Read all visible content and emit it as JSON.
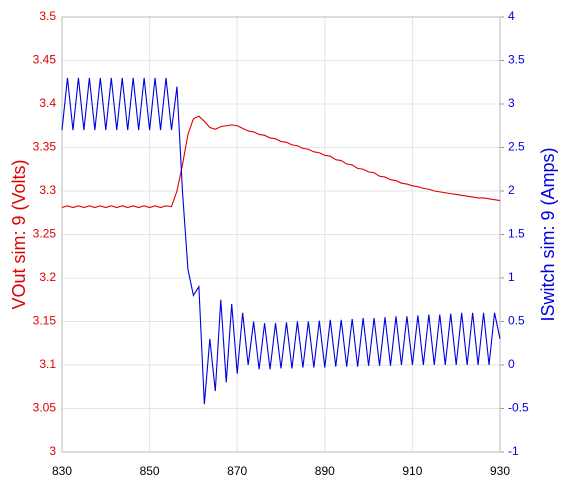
{
  "chart_data": {
    "type": "line",
    "x": [
      830,
      831.25,
      832.5,
      833.75,
      835,
      836.25,
      837.5,
      838.75,
      840,
      841.25,
      842.5,
      843.75,
      845,
      846.25,
      847.5,
      848.75,
      850,
      851.25,
      852.5,
      853.75,
      855,
      856.25,
      857.5,
      858.75,
      860,
      861.25,
      862.5,
      863.75,
      865,
      866.25,
      867.5,
      868.75,
      870,
      871.25,
      872.5,
      873.75,
      875,
      876.25,
      877.5,
      878.75,
      880,
      881.25,
      882.5,
      883.75,
      885,
      886.25,
      887.5,
      888.75,
      890,
      891.25,
      892.5,
      893.75,
      895,
      896.25,
      897.5,
      898.75,
      900,
      901.25,
      902.5,
      903.75,
      905,
      906.25,
      907.5,
      908.75,
      910,
      911.25,
      912.5,
      913.75,
      915,
      916.25,
      917.5,
      918.75,
      920,
      921.25,
      922.5,
      923.75,
      925,
      926.25,
      927.5,
      928.75,
      930
    ],
    "series": [
      {
        "name": "VOut sim:  9 (Volts)",
        "color": "#e00000",
        "axis": "y",
        "values": [
          3.281,
          3.283,
          3.281,
          3.283,
          3.281,
          3.283,
          3.281,
          3.283,
          3.281,
          3.283,
          3.281,
          3.283,
          3.281,
          3.283,
          3.281,
          3.283,
          3.281,
          3.283,
          3.281,
          3.283,
          3.282,
          3.3,
          3.33,
          3.365,
          3.383,
          3.386,
          3.38,
          3.373,
          3.371,
          3.374,
          3.375,
          3.376,
          3.375,
          3.372,
          3.369,
          3.368,
          3.365,
          3.364,
          3.361,
          3.36,
          3.357,
          3.356,
          3.353,
          3.352,
          3.349,
          3.348,
          3.345,
          3.344,
          3.341,
          3.34,
          3.336,
          3.335,
          3.331,
          3.33,
          3.326,
          3.325,
          3.322,
          3.321,
          3.317,
          3.316,
          3.313,
          3.312,
          3.309,
          3.308,
          3.306,
          3.305,
          3.303,
          3.302,
          3.3,
          3.299,
          3.298,
          3.297,
          3.296,
          3.295,
          3.294,
          3.293,
          3.292,
          3.292,
          3.291,
          3.29,
          3.289
        ]
      },
      {
        "name": "ISwitch sim:  9 (Amps)",
        "color": "#0000e0",
        "axis": "y2",
        "values": [
          2.7,
          3.3,
          2.7,
          3.3,
          2.7,
          3.3,
          2.7,
          3.3,
          2.7,
          3.3,
          2.7,
          3.3,
          2.7,
          3.3,
          2.7,
          3.3,
          2.7,
          3.3,
          2.7,
          3.3,
          2.7,
          3.2,
          2.0,
          1.1,
          0.8,
          0.9,
          -0.45,
          0.3,
          -0.3,
          0.75,
          -0.2,
          0.7,
          -0.1,
          0.6,
          0,
          0.5,
          -0.05,
          0.48,
          -0.05,
          0.48,
          -0.04,
          0.49,
          -0.04,
          0.5,
          -0.03,
          0.5,
          -0.03,
          0.51,
          -0.03,
          0.52,
          -0.02,
          0.52,
          -0.02,
          0.53,
          -0.02,
          0.54,
          -0.01,
          0.54,
          -0.01,
          0.55,
          -0.01,
          0.56,
          0,
          0.56,
          0,
          0.57,
          0,
          0.58,
          0,
          0.58,
          0,
          0.59,
          0,
          0.6,
          0,
          0.6,
          0,
          0.6,
          0,
          0.6,
          0.3
        ]
      }
    ],
    "xlim": [
      830,
      930
    ],
    "xticks": [
      830,
      850,
      870,
      890,
      910,
      930
    ],
    "ylim": [
      3,
      3.5
    ],
    "yticks": [
      3,
      3.05,
      3.1,
      3.15,
      3.2,
      3.25,
      3.3,
      3.35,
      3.4,
      3.45,
      3.5
    ],
    "y2lim": [
      -1,
      4
    ],
    "y2ticks": [
      -1,
      -0.5,
      0,
      0.5,
      1,
      1.5,
      2,
      2.5,
      3,
      3.5,
      4
    ],
    "grid": true
  }
}
